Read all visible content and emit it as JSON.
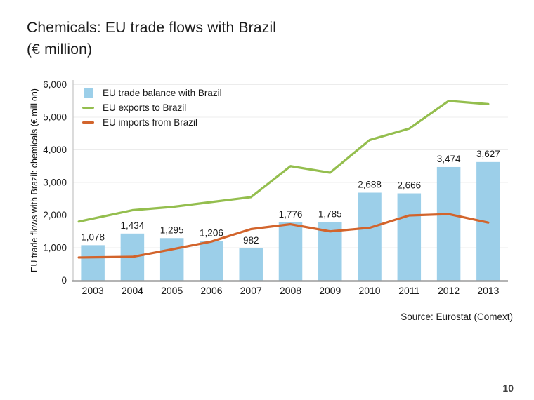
{
  "slide": {
    "title_line1": "Chemicals: EU trade flows with Brazil",
    "title_line2": "(€ million)",
    "source": "Source: Eurostat (Comext)",
    "page_number": "10"
  },
  "legend": {
    "position": "top-left-inside",
    "items": [
      {
        "id": "trade-balance",
        "label": "EU trade balance with Brazil",
        "swatch": "square",
        "color": "#9CCFE9"
      },
      {
        "id": "exports",
        "label": "EU exports to Brazil",
        "swatch": "dash",
        "color": "#94BE4E"
      },
      {
        "id": "imports",
        "label": "EU imports from Brazil",
        "swatch": "dash",
        "color": "#D2642C"
      }
    ]
  },
  "chart_data": {
    "type": "bar+line",
    "title": "Chemicals: EU trade flows with Brazil (€ million)",
    "ylabel": "EU trade flows with Brazil: chemicals (€ million)",
    "xlabel": "",
    "categories": [
      "2003",
      "2004",
      "2005",
      "2006",
      "2007",
      "2008",
      "2009",
      "2010",
      "2011",
      "2012",
      "2013"
    ],
    "ylim": [
      0,
      6000
    ],
    "y_ticks": [
      "0",
      "1,000",
      "2,000",
      "3,000",
      "4,000",
      "5,000",
      "6,000"
    ],
    "grid": true,
    "legend_position": "top-left-inside",
    "series": [
      {
        "id": "trade-balance",
        "name": "EU trade balance with Brazil",
        "type": "bar",
        "color": "#9CCFE9",
        "values": [
          1078,
          1434,
          1295,
          1206,
          982,
          1776,
          1785,
          2688,
          2666,
          3474,
          3627
        ],
        "labels": [
          "1,078",
          "1,434",
          "1,295",
          "1,206",
          "982",
          "1,776",
          "1,785",
          "2,688",
          "2,666",
          "3,474",
          "3,627"
        ]
      },
      {
        "id": "exports",
        "name": "EU exports to Brazil",
        "type": "line",
        "color": "#94BE4E",
        "values": [
          1800,
          2150,
          2250,
          2400,
          2550,
          3500,
          3300,
          4300,
          4650,
          5500,
          5400
        ]
      },
      {
        "id": "imports",
        "name": "EU imports from Brazil",
        "type": "line",
        "color": "#D2642C",
        "values": [
          700,
          720,
          950,
          1190,
          1570,
          1720,
          1500,
          1610,
          1990,
          2030,
          1770
        ]
      }
    ],
    "axis_colors": {
      "gridline": "#ECECEC",
      "y_axis_line": "#C8C8C8",
      "x_axis_line": "#9B9B9B"
    }
  }
}
